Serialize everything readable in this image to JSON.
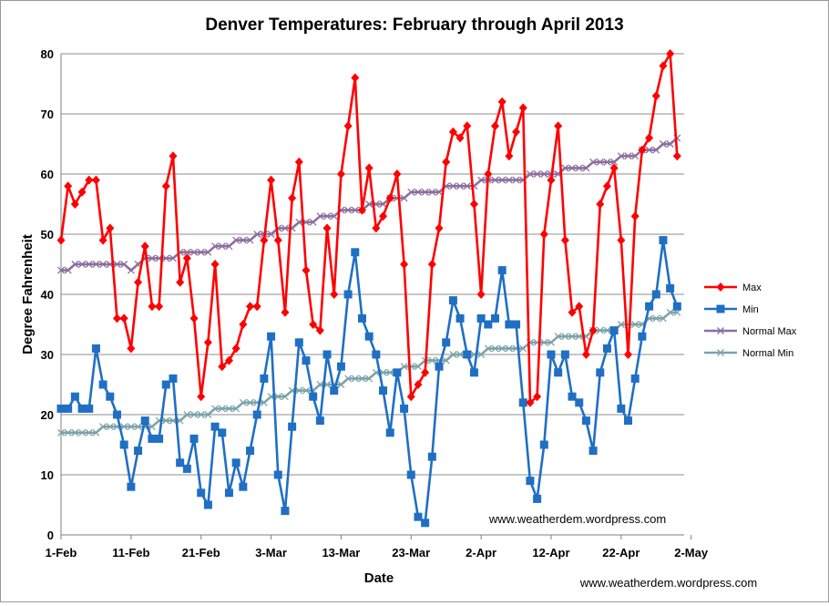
{
  "chart_data": {
    "type": "line",
    "title": "Denver Temperatures: February through April 2013",
    "xlabel": "Date",
    "ylabel": "Degree Fahrenheit",
    "ylim": [
      0,
      80
    ],
    "yticks": [
      0,
      10,
      20,
      30,
      40,
      50,
      60,
      70,
      80
    ],
    "xlim": [
      "2013-02-01",
      "2013-05-01"
    ],
    "xticks": [
      "1-Feb",
      "11-Feb",
      "21-Feb",
      "3-Mar",
      "13-Mar",
      "23-Mar",
      "2-Apr",
      "12-Apr",
      "22-Apr",
      "2-May"
    ],
    "grid": "horizontal",
    "legend_position": "right",
    "x": [
      "2013-02-01",
      "2013-02-02",
      "2013-02-03",
      "2013-02-04",
      "2013-02-05",
      "2013-02-06",
      "2013-02-07",
      "2013-02-08",
      "2013-02-09",
      "2013-02-10",
      "2013-02-11",
      "2013-02-12",
      "2013-02-13",
      "2013-02-14",
      "2013-02-15",
      "2013-02-16",
      "2013-02-17",
      "2013-02-18",
      "2013-02-19",
      "2013-02-20",
      "2013-02-21",
      "2013-02-22",
      "2013-02-23",
      "2013-02-24",
      "2013-02-25",
      "2013-02-26",
      "2013-02-27",
      "2013-02-28",
      "2013-03-01",
      "2013-03-02",
      "2013-03-03",
      "2013-03-04",
      "2013-03-05",
      "2013-03-06",
      "2013-03-07",
      "2013-03-08",
      "2013-03-09",
      "2013-03-10",
      "2013-03-11",
      "2013-03-12",
      "2013-03-13",
      "2013-03-14",
      "2013-03-15",
      "2013-03-16",
      "2013-03-17",
      "2013-03-18",
      "2013-03-19",
      "2013-03-20",
      "2013-03-21",
      "2013-03-22",
      "2013-03-23",
      "2013-03-24",
      "2013-03-25",
      "2013-03-26",
      "2013-03-27",
      "2013-03-28",
      "2013-03-29",
      "2013-03-30",
      "2013-03-31",
      "2013-04-01",
      "2013-04-02",
      "2013-04-03",
      "2013-04-04",
      "2013-04-05",
      "2013-04-06",
      "2013-04-07",
      "2013-04-08",
      "2013-04-09",
      "2013-04-10",
      "2013-04-11",
      "2013-04-12",
      "2013-04-13",
      "2013-04-14",
      "2013-04-15",
      "2013-04-16",
      "2013-04-17",
      "2013-04-18",
      "2013-04-19",
      "2013-04-20",
      "2013-04-21",
      "2013-04-22",
      "2013-04-23",
      "2013-04-24",
      "2013-04-25",
      "2013-04-26",
      "2013-04-27",
      "2013-04-28",
      "2013-04-29",
      "2013-04-30"
    ],
    "series": [
      {
        "name": "Max",
        "color": "#ff0000",
        "marker": "diamond",
        "values": [
          49,
          58,
          55,
          57,
          59,
          59,
          49,
          51,
          36,
          36,
          31,
          42,
          48,
          38,
          38,
          58,
          63,
          42,
          46,
          36,
          23,
          32,
          45,
          28,
          29,
          31,
          35,
          38,
          38,
          49,
          59,
          49,
          37,
          56,
          62,
          44,
          35,
          34,
          51,
          40,
          60,
          68,
          76,
          54,
          61,
          51,
          53,
          56,
          60,
          45,
          23,
          25,
          27,
          45,
          51,
          62,
          67,
          66,
          68,
          55,
          40,
          60,
          68,
          72,
          63,
          67,
          71,
          22,
          23,
          50,
          59,
          68,
          49,
          37,
          38,
          30,
          34,
          55,
          58,
          61,
          49,
          30,
          53,
          64,
          66,
          73,
          78,
          80,
          63
        ]
      },
      {
        "name": "Min",
        "color": "#1f6fc4",
        "marker": "square",
        "values": [
          21,
          21,
          23,
          21,
          21,
          31,
          25,
          23,
          20,
          15,
          8,
          14,
          19,
          16,
          16,
          25,
          26,
          12,
          11,
          16,
          7,
          5,
          18,
          17,
          7,
          12,
          8,
          14,
          20,
          26,
          33,
          10,
          4,
          18,
          32,
          29,
          23,
          19,
          30,
          24,
          28,
          40,
          47,
          36,
          33,
          30,
          24,
          17,
          27,
          21,
          10,
          3,
          2,
          13,
          28,
          32,
          39,
          36,
          30,
          27,
          36,
          35,
          36,
          44,
          35,
          35,
          22,
          9,
          6,
          15,
          30,
          27,
          30,
          23,
          22,
          19,
          14,
          27,
          31,
          34,
          21,
          19,
          26,
          33,
          38,
          40,
          49,
          41,
          38
        ]
      },
      {
        "name": "Normal Max",
        "color": "#8b6f9e",
        "marker": "x",
        "values": [
          44,
          44,
          45,
          45,
          45,
          45,
          45,
          45,
          45,
          45,
          44,
          45,
          46,
          46,
          46,
          46,
          46,
          47,
          47,
          47,
          47,
          47,
          48,
          48,
          48,
          49,
          49,
          49,
          50,
          50,
          50,
          51,
          51,
          51,
          52,
          52,
          52,
          53,
          53,
          53,
          54,
          54,
          54,
          54,
          55,
          55,
          55,
          56,
          56,
          56,
          57,
          57,
          57,
          57,
          57,
          58,
          58,
          58,
          58,
          58,
          59,
          59,
          59,
          59,
          59,
          59,
          59,
          60,
          60,
          60,
          60,
          60,
          61,
          61,
          61,
          61,
          62,
          62,
          62,
          62,
          63,
          63,
          63,
          64,
          64,
          64,
          65,
          65,
          66
        ]
      },
      {
        "name": "Normal Min",
        "color": "#7ca3a9",
        "marker": "x",
        "values": [
          17,
          17,
          17,
          17,
          17,
          17,
          18,
          18,
          18,
          18,
          18,
          18,
          18,
          18,
          19,
          19,
          19,
          19,
          20,
          20,
          20,
          20,
          21,
          21,
          21,
          21,
          22,
          22,
          22,
          22,
          23,
          23,
          23,
          24,
          24,
          24,
          24,
          25,
          25,
          25,
          25,
          26,
          26,
          26,
          26,
          27,
          27,
          27,
          27,
          28,
          28,
          28,
          29,
          29,
          29,
          29,
          30,
          30,
          30,
          30,
          30,
          31,
          31,
          31,
          31,
          31,
          31,
          32,
          32,
          32,
          32,
          33,
          33,
          33,
          33,
          33,
          34,
          34,
          34,
          34,
          35,
          35,
          35,
          35,
          36,
          36,
          36,
          37,
          37
        ]
      }
    ],
    "annotations": [
      "www.weatherdem.wordpress.com",
      "www.weatherdem.wordpress.com"
    ]
  }
}
